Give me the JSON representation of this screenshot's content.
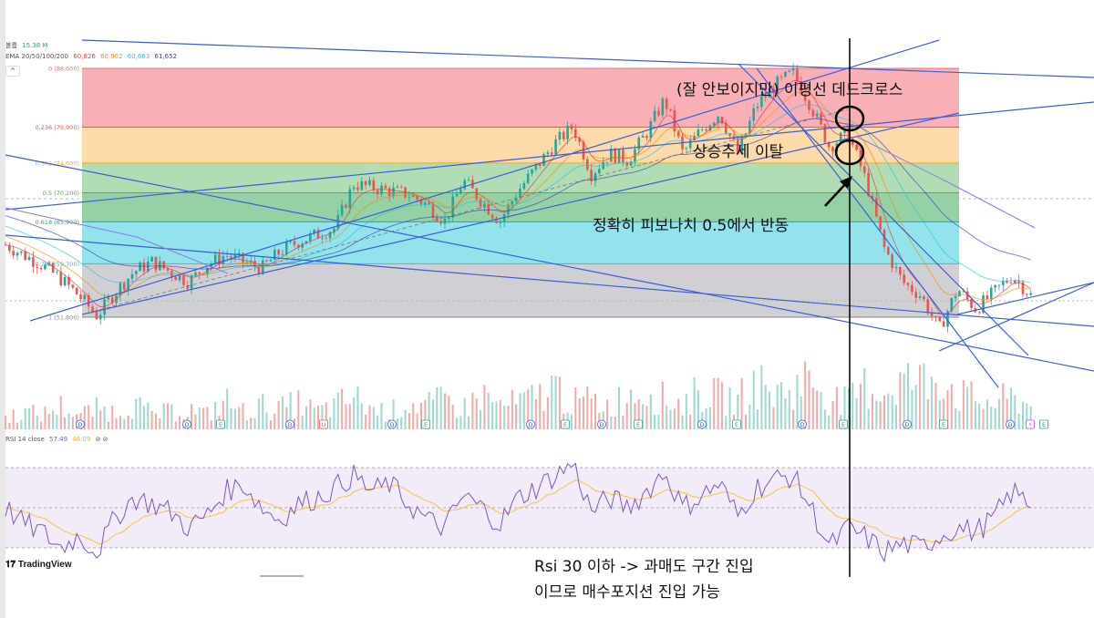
{
  "legend": {
    "volume_label": "볼륨",
    "volume_value": "15.38 M",
    "ema_label": "EMA 20/50/100/200",
    "ema_values": [
      "60,826",
      "60,902",
      "60,663",
      "61,652"
    ],
    "ema_colors": [
      "#e53935",
      "#fb8c00",
      "#26c6da",
      "#3f3fb5"
    ],
    "rsi_label": "RSI 14 close",
    "rsi_values": [
      "57.49",
      "46.09"
    ],
    "rsi_colors": [
      "#7e57c2",
      "#fbc02d"
    ],
    "collapse_icon": "chevron-up-icon"
  },
  "brand": "TradingView",
  "annotations": {
    "dead_cross": "(잘 안보이지만) 이평선 데드크로스",
    "trend_break": "상승추세 이탈",
    "fib_bounce": "정확히 피보나치 0.5에서 반동",
    "rsi_line1": "Rsi 30 이하 -> 과매도 구간 진입",
    "rsi_line2": "이므로 매수포지션 진입 가능"
  },
  "chart_data": {
    "type": "candlestick",
    "fibonacci": [
      {
        "ratio": "0",
        "price": 88600,
        "label": "0 (88,600)",
        "color": "#f7a1a8",
        "line": "#e57373"
      },
      {
        "ratio": "0.236",
        "price": 79900,
        "label": "0.236 (79,900)",
        "color": "#fdd49a",
        "line": "#ef5350"
      },
      {
        "ratio": "0.382",
        "price": 74600,
        "label": "0.382 (74,600)",
        "color": "#a5d6a7",
        "line": "#f9a825"
      },
      {
        "ratio": "0.5",
        "price": 70200,
        "label": "0.5 (70,200)",
        "color": "#81c995",
        "line": "#4caf50"
      },
      {
        "ratio": "0.618",
        "price": 65900,
        "label": "0.618 (65,900)",
        "color": "#80deea",
        "line": "#26a69a"
      },
      {
        "ratio": "0.786",
        "price": 59700,
        "label": "0.786 (59,700)",
        "color": "#c8c8cc",
        "line": "#26c6da"
      },
      {
        "ratio": "1",
        "price": 51800,
        "label": "1 (51,800)",
        "color": null,
        "line": "#888888"
      }
    ],
    "price_close": [
      62500,
      61000,
      59500,
      57500,
      55000,
      52000,
      55500,
      58500,
      60000,
      58500,
      57000,
      59500,
      61000,
      60000,
      59000,
      61500,
      63000,
      64000,
      65000,
      71500,
      71000,
      70500,
      70000,
      68500,
      66000,
      72000,
      69000,
      66000,
      70500,
      74000,
      77500,
      80000,
      73000,
      76000,
      75000,
      79000,
      84000,
      76000,
      79500,
      82000,
      76000,
      83000,
      86000,
      88000,
      83000,
      77000,
      79000,
      72000,
      62000,
      57000,
      55000,
      50000,
      56000,
      53000,
      55500,
      58000,
      55000
    ],
    "volume_millions": [
      4,
      6,
      5,
      8,
      5,
      7,
      6,
      9,
      5,
      6,
      7,
      5,
      10,
      6,
      8,
      7,
      9,
      6,
      8,
      11,
      7,
      6,
      9,
      8,
      10,
      7,
      12,
      8,
      9,
      11,
      15,
      9,
      10,
      8,
      12,
      14,
      10,
      9,
      13,
      11,
      10,
      16,
      12,
      14,
      18,
      11,
      9,
      15,
      13,
      17,
      16,
      20,
      12,
      10,
      9,
      11,
      8
    ],
    "rsi": [
      50,
      42,
      38,
      30,
      36,
      28,
      45,
      55,
      52,
      48,
      40,
      46,
      58,
      62,
      50,
      44,
      52,
      55,
      60,
      66,
      58,
      62,
      52,
      44,
      40,
      56,
      50,
      42,
      55,
      60,
      66,
      72,
      48,
      55,
      50,
      58,
      68,
      50,
      56,
      62,
      46,
      60,
      64,
      66,
      50,
      30,
      40,
      35,
      28,
      32,
      30,
      36,
      40,
      38,
      45,
      58,
      52
    ],
    "rsi_levels": [
      70,
      50,
      30
    ],
    "event_markers": [
      "D",
      "D",
      "E",
      "D",
      "U",
      "D",
      "E",
      "D",
      "E",
      "D",
      "E",
      "D",
      "E",
      "D",
      "E",
      "D",
      "E",
      "D",
      "⚡",
      "E"
    ]
  }
}
